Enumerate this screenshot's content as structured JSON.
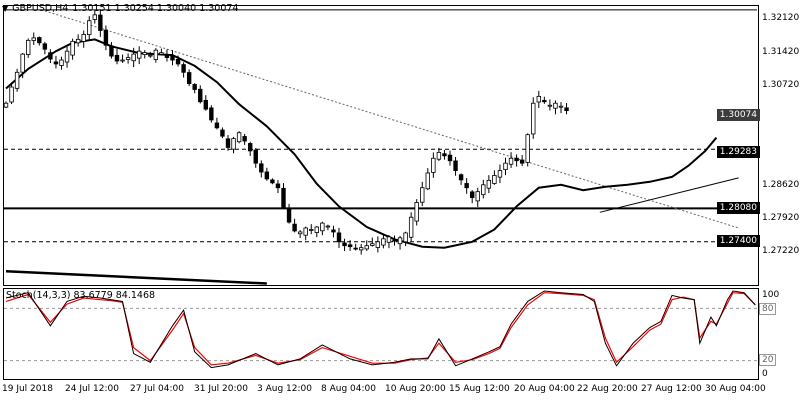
{
  "header": {
    "menu_icon": "triangle-down-icon",
    "symbol": "GBPUSD,H4",
    "ohlc": "1.30151 1.30254 1.30040 1.30074"
  },
  "oscillator": {
    "label": "Stoch(14,3,3) 83.6779 84.1468",
    "scale_top": "100",
    "scale_80": "80",
    "scale_20": "20",
    "scale_bottom": "0"
  },
  "price_scale": [
    "1.32120",
    "1.31420",
    "1.30720",
    "1.28620",
    "1.27920",
    "1.27220"
  ],
  "level_labels": {
    "current": "1.30074",
    "l1": "1.29283",
    "l2": "1.28080",
    "l3": "1.27400"
  },
  "date_scale": [
    "19 Jul 2018",
    "24 Jul 12:00",
    "27 Jul 04:00",
    "31 Jul 20:00",
    "3 Aug 12:00",
    "8 Aug 04:00",
    "10 Aug 20:00",
    "15 Aug 12:00",
    "20 Aug 04:00",
    "22 Aug 20:00",
    "27 Aug 12:00",
    "30 Aug 04:00"
  ],
  "colors": {
    "candle": "#000000",
    "ma": "#000000",
    "stoch_main": "#000000",
    "stoch_signal": "#ff0000",
    "grid_border": "#000000"
  },
  "chart_data": {
    "type": "candlestick",
    "symbol": "GBPUSD",
    "timeframe": "H4",
    "price_range": [
      1.2652,
      1.3222
    ],
    "closes": [
      1.3022,
      1.3055,
      1.3085,
      1.3122,
      1.315,
      1.3155,
      1.3145,
      1.3132,
      1.3112,
      1.3102,
      1.311,
      1.3128,
      1.3148,
      1.3152,
      1.3162,
      1.319,
      1.3202,
      1.317,
      1.314,
      1.3118,
      1.3108,
      1.311,
      1.3115,
      1.3122,
      1.3128,
      1.3125,
      1.312,
      1.313,
      1.3125,
      1.3115,
      1.311,
      1.3102,
      1.3085,
      1.3062,
      1.305,
      1.3025,
      1.301,
      1.2988,
      1.2972,
      1.2955,
      1.2932,
      1.295,
      1.2962,
      1.2945,
      1.2925,
      1.29,
      1.2882,
      1.2868,
      1.286,
      1.285,
      1.281,
      1.278,
      1.2762,
      1.276,
      1.2768,
      1.2765,
      1.277,
      1.2778,
      1.2772,
      1.276,
      1.274,
      1.2732,
      1.273,
      1.2726,
      1.2728,
      1.2732,
      1.2736,
      1.274,
      1.2746,
      1.275,
      1.2742,
      1.2748,
      1.2758,
      1.279,
      1.282,
      1.285,
      1.288,
      1.291,
      1.2922,
      1.2915,
      1.2905,
      1.2885,
      1.2866,
      1.285,
      1.283,
      1.2842,
      1.2856,
      1.2865,
      1.2875,
      1.2885,
      1.29,
      1.291,
      1.2905,
      1.29,
      1.2958,
      1.3022,
      1.3036,
      1.3025,
      1.3018,
      1.3022,
      1.3016,
      1.3007
    ],
    "moving_average": {
      "points": [
        [
          0,
          1.3052
        ],
        [
          4,
          1.3092
        ],
        [
          9,
          1.3128
        ],
        [
          12,
          1.3145
        ],
        [
          16,
          1.3152
        ],
        [
          19,
          1.3138
        ],
        [
          24,
          1.3124
        ],
        [
          30,
          1.312
        ],
        [
          34,
          1.3098
        ],
        [
          38,
          1.3065
        ],
        [
          42,
          1.302
        ],
        [
          47,
          1.2975
        ],
        [
          52,
          1.2918
        ],
        [
          56,
          1.2858
        ],
        [
          60,
          1.2812
        ],
        [
          65,
          1.277
        ],
        [
          70,
          1.2745
        ],
        [
          75,
          1.273
        ],
        [
          79,
          1.2728
        ],
        [
          84,
          1.274
        ],
        [
          88,
          1.2765
        ],
        [
          92,
          1.2812
        ],
        [
          96,
          1.285
        ],
        [
          100,
          1.2856
        ],
        [
          104,
          1.2845
        ],
        [
          108,
          1.2852
        ],
        [
          112,
          1.2856
        ],
        [
          116,
          1.2862
        ],
        [
          120,
          1.2872
        ],
        [
          123,
          1.2895
        ],
        [
          126,
          1.2925
        ],
        [
          128,
          1.2952
        ]
      ],
      "x_units": "bar index"
    },
    "horizontal_levels": [
      {
        "price": 1.3212,
        "style": "solid"
      },
      {
        "price": 1.29283,
        "style": "dashed"
      },
      {
        "price": 1.2808,
        "style": "solid-thick"
      },
      {
        "price": 1.274,
        "style": "dashed"
      }
    ],
    "trendlines": [
      {
        "from": [
          7,
          1.321
        ],
        "to": [
          132,
          1.2768
        ],
        "style": "dotted"
      },
      {
        "from": [
          107,
          1.28
        ],
        "to": [
          132,
          1.287
        ],
        "style": "solid"
      },
      {
        "from": [
          0,
          1.268
        ],
        "to": [
          47,
          1.2655
        ],
        "style": "solid-thick"
      }
    ],
    "stochastic": {
      "params": "14,3,3",
      "main_value": 83.6779,
      "signal_value": 84.1468,
      "ylim": [
        0,
        100
      ],
      "levels": [
        20,
        80
      ],
      "main": [
        [
          0,
          92
        ],
        [
          4,
          98
        ],
        [
          8,
          60
        ],
        [
          11,
          88
        ],
        [
          14,
          94
        ],
        [
          17,
          92
        ],
        [
          19,
          90
        ],
        [
          21,
          88
        ],
        [
          23,
          28
        ],
        [
          26,
          18
        ],
        [
          30,
          60
        ],
        [
          32,
          78
        ],
        [
          34,
          30
        ],
        [
          37,
          12
        ],
        [
          40,
          15
        ],
        [
          45,
          28
        ],
        [
          49,
          15
        ],
        [
          53,
          22
        ],
        [
          57,
          38
        ],
        [
          62,
          22
        ],
        [
          66,
          15
        ],
        [
          70,
          18
        ],
        [
          73,
          22
        ],
        [
          76,
          22
        ],
        [
          78,
          45
        ],
        [
          81,
          14
        ],
        [
          84,
          22
        ],
        [
          87,
          30
        ],
        [
          89,
          36
        ],
        [
          91,
          62
        ],
        [
          94,
          88
        ],
        [
          97,
          100
        ],
        [
          100,
          98
        ],
        [
          104,
          96
        ],
        [
          106,
          88
        ],
        [
          108,
          40
        ],
        [
          110,
          14
        ],
        [
          113,
          40
        ],
        [
          116,
          58
        ],
        [
          118,
          65
        ],
        [
          120,
          95
        ],
        [
          122,
          92
        ],
        [
          124,
          90
        ],
        [
          125,
          40
        ],
        [
          127,
          70
        ],
        [
          128,
          60
        ],
        [
          130,
          90
        ],
        [
          131,
          100
        ],
        [
          133,
          98
        ],
        [
          135,
          84
        ]
      ],
      "signal": [
        [
          0,
          88
        ],
        [
          4,
          96
        ],
        [
          8,
          64
        ],
        [
          11,
          85
        ],
        [
          14,
          92
        ],
        [
          17,
          90
        ],
        [
          19,
          89
        ],
        [
          21,
          87
        ],
        [
          23,
          35
        ],
        [
          26,
          20
        ],
        [
          30,
          55
        ],
        [
          32,
          74
        ],
        [
          34,
          35
        ],
        [
          37,
          15
        ],
        [
          40,
          17
        ],
        [
          45,
          26
        ],
        [
          49,
          17
        ],
        [
          53,
          21
        ],
        [
          57,
          35
        ],
        [
          62,
          25
        ],
        [
          66,
          17
        ],
        [
          70,
          17
        ],
        [
          73,
          21
        ],
        [
          76,
          23
        ],
        [
          78,
          40
        ],
        [
          81,
          18
        ],
        [
          84,
          21
        ],
        [
          87,
          28
        ],
        [
          89,
          34
        ],
        [
          91,
          58
        ],
        [
          94,
          84
        ],
        [
          97,
          98
        ],
        [
          100,
          97
        ],
        [
          104,
          95
        ],
        [
          106,
          90
        ],
        [
          108,
          46
        ],
        [
          110,
          18
        ],
        [
          113,
          36
        ],
        [
          116,
          55
        ],
        [
          118,
          62
        ],
        [
          120,
          90
        ],
        [
          122,
          93
        ],
        [
          124,
          90
        ],
        [
          125,
          46
        ],
        [
          127,
          65
        ],
        [
          128,
          62
        ],
        [
          130,
          86
        ],
        [
          131,
          98
        ],
        [
          133,
          97
        ],
        [
          135,
          84
        ]
      ],
      "x_units": "bar index"
    }
  }
}
